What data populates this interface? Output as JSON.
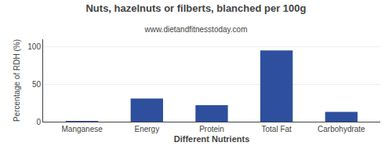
{
  "chart_data": {
    "type": "bar",
    "title": "Nuts, hazelnuts or filberts, blanched per 100g",
    "subtitle": "www.dietandfitnesstoday.com",
    "xlabel": "Different Nutrients",
    "ylabel": "Percentage of RDH (%)",
    "categories": [
      "Manganese",
      "Energy",
      "Protein",
      "Total Fat",
      "Carbohydrate"
    ],
    "values": [
      0.5,
      31,
      22,
      95,
      13
    ],
    "color": "#2d4f9e",
    "ylim": [
      0,
      110
    ],
    "yticks": [
      0,
      50,
      100
    ],
    "grid": true
  }
}
